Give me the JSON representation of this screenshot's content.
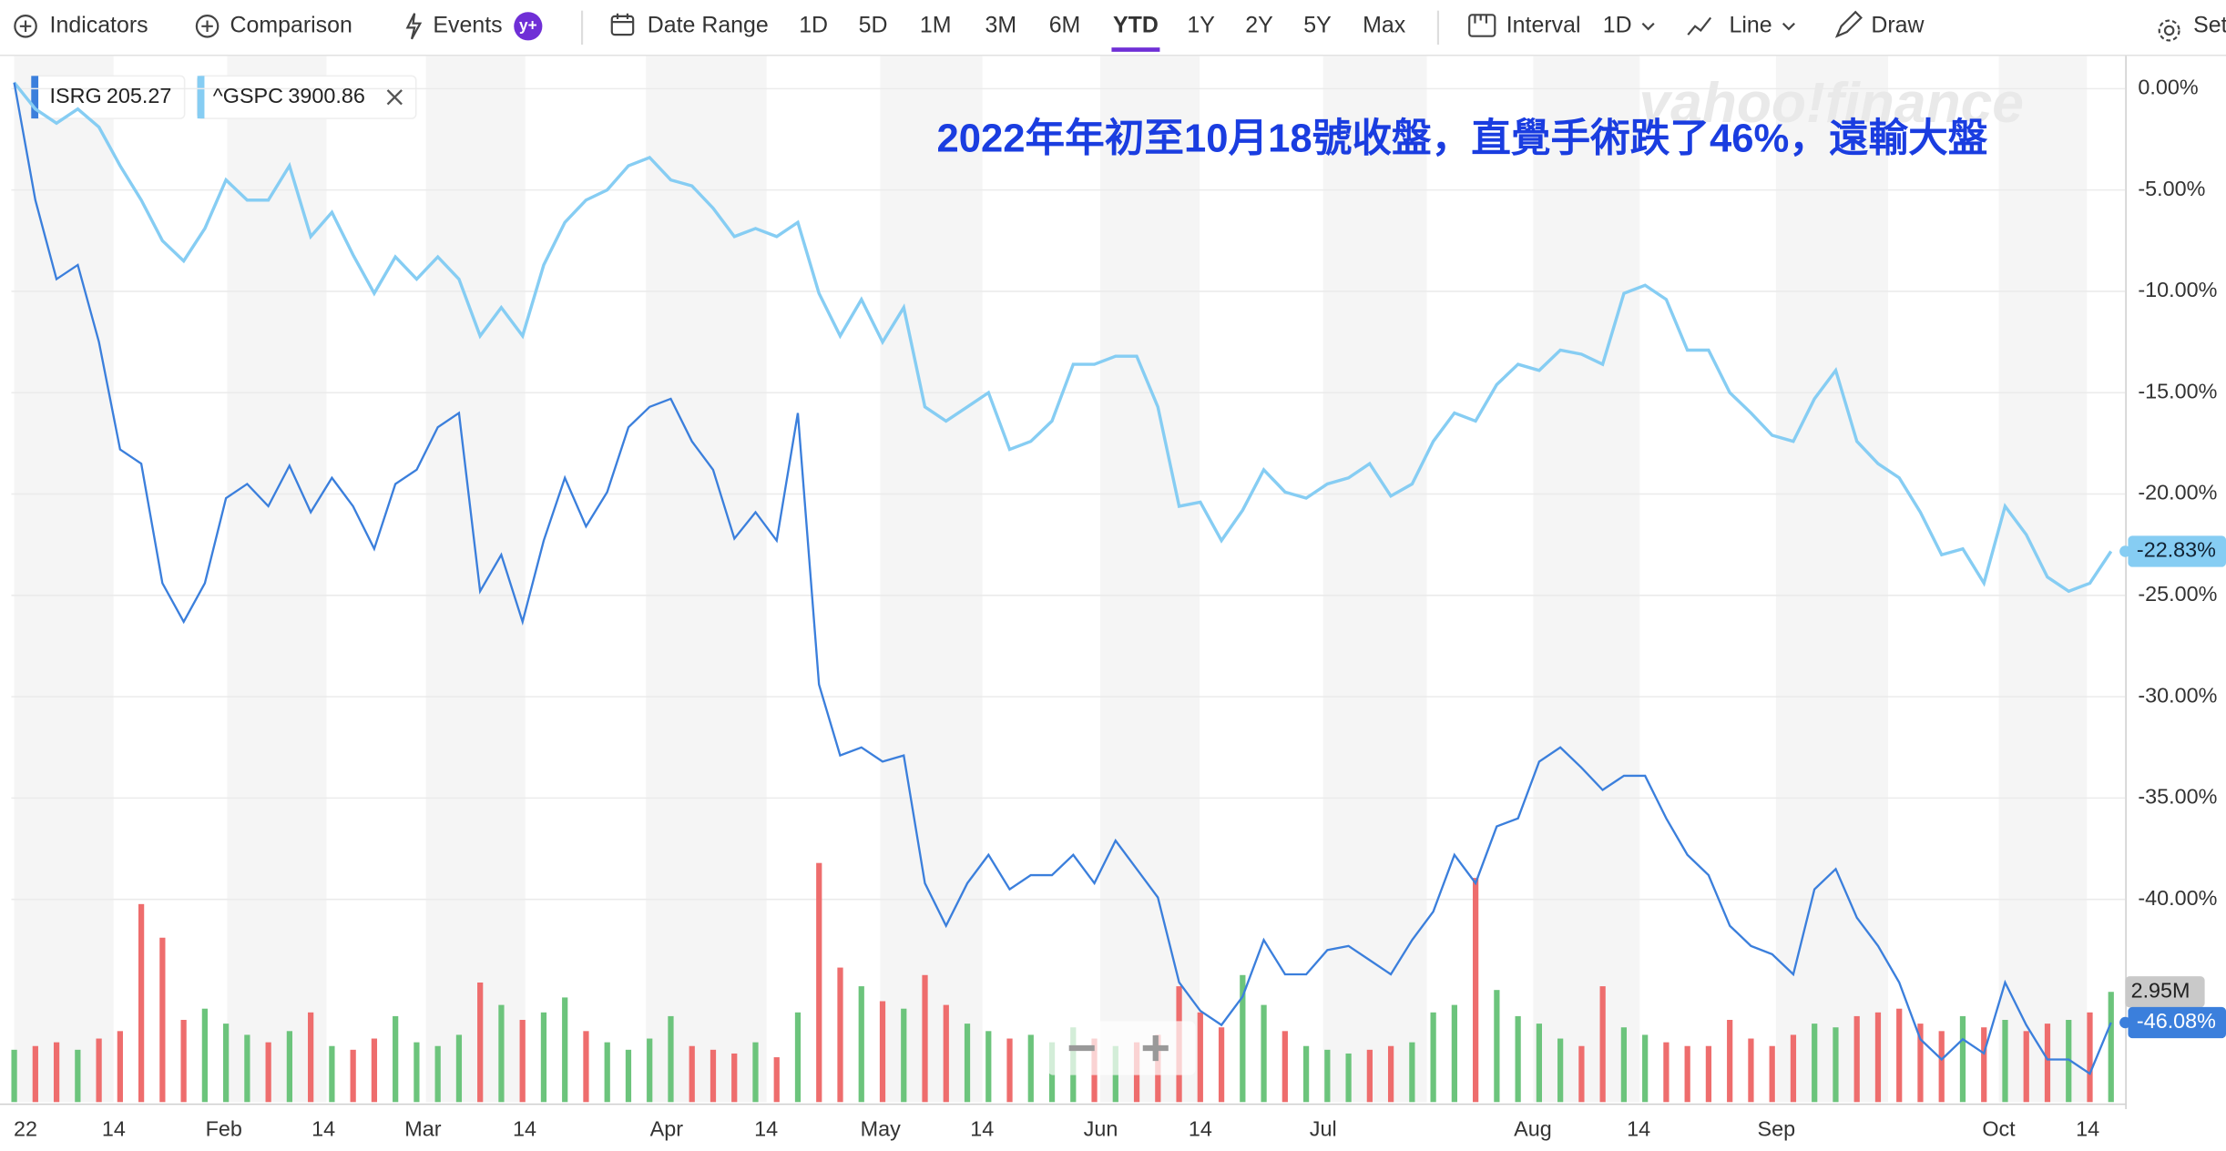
{
  "toolbar": {
    "indicators": "Indicators",
    "comparison": "Comparison",
    "events": "Events",
    "events_badge": "y+",
    "date_range": "Date Range",
    "ranges": [
      "1D",
      "5D",
      "1M",
      "3M",
      "6M",
      "YTD",
      "1Y",
      "2Y",
      "5Y",
      "Max"
    ],
    "selected": "YTD",
    "interval": "Interval",
    "interval_value": "1D",
    "line": "Line",
    "draw": "Draw",
    "settings": "Set"
  },
  "chart_data": {
    "type": "line",
    "annotation": "2022年年初至10月18號收盤，直覺手術跌了46%，遠輸大盤",
    "watermark": "yahoo!finance",
    "ylim": [
      -50,
      1.61
    ],
    "yticks": [
      {
        "value": 0,
        "label": "0.00%"
      },
      {
        "value": -5,
        "label": "-5.00%"
      },
      {
        "value": -10,
        "label": "-10.00%"
      },
      {
        "value": -15,
        "label": "-15.00%"
      },
      {
        "value": -20,
        "label": "-20.00%"
      },
      {
        "value": -25,
        "label": "-25.00%"
      },
      {
        "value": -30,
        "label": "-30.00%"
      },
      {
        "value": -35,
        "label": "-35.00%"
      },
      {
        "value": -40,
        "label": "-40.00%"
      }
    ],
    "xlim": [
      -0.134,
      99.67
    ],
    "xticks": [
      {
        "value": 0,
        "label": "22"
      },
      {
        "value": 4.7,
        "label": "14"
      },
      {
        "value": 9.9,
        "label": "Feb"
      },
      {
        "value": 14.6,
        "label": "14"
      },
      {
        "value": 19.3,
        "label": "Mar"
      },
      {
        "value": 24.1,
        "label": "14"
      },
      {
        "value": 30.8,
        "label": "Apr"
      },
      {
        "value": 35.5,
        "label": "14"
      },
      {
        "value": 40.9,
        "label": "May"
      },
      {
        "value": 45.7,
        "label": "14"
      },
      {
        "value": 51.3,
        "label": "Jun"
      },
      {
        "value": 56.0,
        "label": "14"
      },
      {
        "value": 61.8,
        "label": "Jul"
      },
      {
        "value": 71.7,
        "label": "Aug"
      },
      {
        "value": 76.7,
        "label": "14"
      },
      {
        "value": 83.2,
        "label": "Sep"
      },
      {
        "value": 93.7,
        "label": "Oct"
      },
      {
        "value": 97.9,
        "label": "14"
      }
    ],
    "grid": true,
    "series": [
      {
        "name": "ISRG",
        "price": "205.27",
        "color": "#3b7fdc",
        "end_label": "-46.08%",
        "values": [
          0.3,
          -5.5,
          -9.4,
          -8.7,
          -12.5,
          -17.8,
          -18.5,
          -24.4,
          -26.3,
          -24.4,
          -20.2,
          -19.5,
          -20.6,
          -18.6,
          -20.9,
          -19.2,
          -20.6,
          -22.7,
          -19.5,
          -18.8,
          -16.7,
          -16.0,
          -24.8,
          -23.0,
          -26.3,
          -22.3,
          -19.2,
          -21.6,
          -19.9,
          -16.7,
          -15.7,
          -15.3,
          -17.4,
          -18.8,
          -22.2,
          -20.9,
          -22.3,
          -16.0,
          -29.4,
          -32.9,
          -32.5,
          -33.2,
          -32.9,
          -39.2,
          -41.3,
          -39.2,
          -37.8,
          -39.5,
          -38.8,
          -38.8,
          -37.8,
          -39.2,
          -37.1,
          -38.5,
          -39.9,
          -44.1,
          -45.5,
          -46.2,
          -44.8,
          -42.0,
          -43.7,
          -43.7,
          -42.5,
          -42.3,
          -43.0,
          -43.7,
          -42.0,
          -40.6,
          -37.8,
          -39.2,
          -36.4,
          -36.0,
          -33.2,
          -32.5,
          -33.5,
          -34.6,
          -33.9,
          -33.9,
          -36.0,
          -37.8,
          -38.8,
          -41.3,
          -42.3,
          -42.7,
          -43.7,
          -39.5,
          -38.5,
          -40.9,
          -42.3,
          -44.1,
          -46.9,
          -47.9,
          -46.9,
          -47.6,
          -44.1,
          -46.2,
          -47.9,
          -47.9,
          -48.6,
          -46.08
        ]
      },
      {
        "name": "^GSPC",
        "price": "3900.86",
        "color": "#86cdf3",
        "end_label": "-22.83%",
        "values": [
          0.3,
          -1.0,
          -1.7,
          -1.0,
          -1.9,
          -3.8,
          -5.5,
          -7.5,
          -8.5,
          -6.9,
          -4.5,
          -5.5,
          -5.5,
          -3.8,
          -7.3,
          -6.1,
          -8.2,
          -10.1,
          -8.3,
          -9.4,
          -8.3,
          -9.4,
          -12.2,
          -10.8,
          -12.2,
          -8.7,
          -6.6,
          -5.5,
          -5.0,
          -3.8,
          -3.4,
          -4.5,
          -4.8,
          -5.9,
          -7.3,
          -6.9,
          -7.3,
          -6.6,
          -10.1,
          -12.2,
          -10.4,
          -12.5,
          -10.8,
          -15.7,
          -16.4,
          -15.7,
          -15.0,
          -17.8,
          -17.4,
          -16.4,
          -13.6,
          -13.6,
          -13.2,
          -13.2,
          -15.7,
          -20.6,
          -20.4,
          -22.3,
          -20.8,
          -18.8,
          -19.9,
          -20.2,
          -19.5,
          -19.2,
          -18.5,
          -20.1,
          -19.5,
          -17.4,
          -16.0,
          -16.4,
          -14.6,
          -13.6,
          -13.9,
          -12.9,
          -13.1,
          -13.6,
          -10.1,
          -9.7,
          -10.4,
          -12.9,
          -12.9,
          -15.0,
          -16.0,
          -17.1,
          -17.4,
          -15.3,
          -13.9,
          -17.4,
          -18.5,
          -19.2,
          -20.9,
          -23.0,
          -22.7,
          -24.4,
          -20.6,
          -22.0,
          -24.1,
          -24.8,
          -24.4,
          -22.83
        ]
      }
    ],
    "volume": {
      "vlim": [
        0,
        28
      ],
      "up_color": "#6cc47c",
      "down_color": "#ee6d6d",
      "end_label": "2.95M",
      "values": [
        1.4,
        1.5,
        1.6,
        1.4,
        1.7,
        1.9,
        5.3,
        4.4,
        2.2,
        2.5,
        2.1,
        1.8,
        1.6,
        1.9,
        2.4,
        1.5,
        1.4,
        1.7,
        2.3,
        1.6,
        1.5,
        1.8,
        3.2,
        2.6,
        2.2,
        2.4,
        2.8,
        1.9,
        1.6,
        1.4,
        1.7,
        2.3,
        1.5,
        1.4,
        1.3,
        1.6,
        1.2,
        2.4,
        6.4,
        3.6,
        3.1,
        2.7,
        2.5,
        3.4,
        2.6,
        2.1,
        1.9,
        1.7,
        1.8,
        1.6,
        2.0,
        1.7,
        1.5,
        1.6,
        1.8,
        3.1,
        2.4,
        2.0,
        3.4,
        2.6,
        1.9,
        1.5,
        1.4,
        1.3,
        1.4,
        1.5,
        1.6,
        2.4,
        2.6,
        6.0,
        3.0,
        2.3,
        2.1,
        1.7,
        1.5,
        3.1,
        2.0,
        1.8,
        1.6,
        1.5,
        1.5,
        2.2,
        1.7,
        1.5,
        1.8,
        2.1,
        2.0,
        2.3,
        2.4,
        2.5,
        2.1,
        1.9,
        2.3,
        2.0,
        2.2,
        1.9,
        2.1,
        2.2,
        2.4,
        2.95
      ]
    }
  }
}
